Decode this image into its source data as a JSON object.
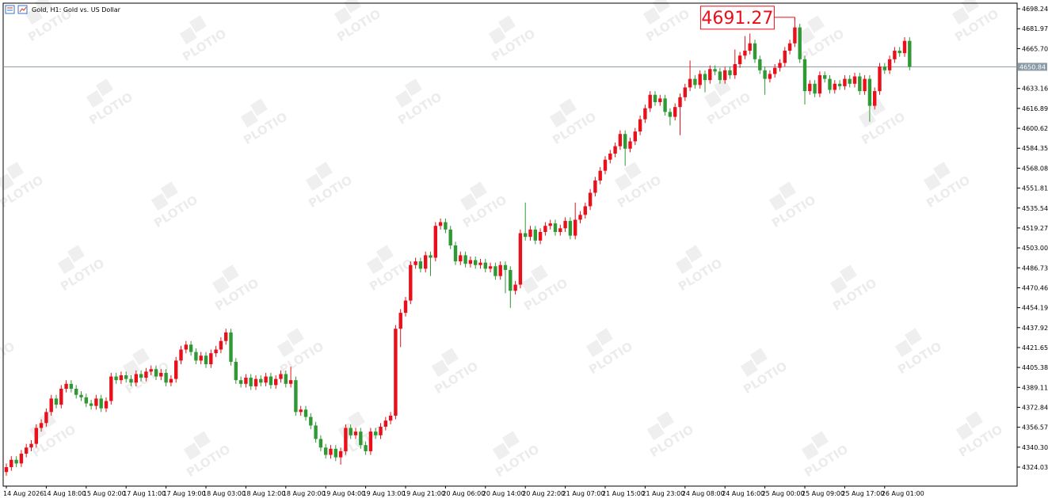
{
  "chart_data": {
    "type": "candlestick",
    "title": "Gold, H1:  Gold vs. US Dollar",
    "watermark": "PLOTIO",
    "up_color": "#e8101a",
    "down_color": "#2f9a34",
    "bid": 4650.84,
    "max_label": 4691.27,
    "ylim": [
      4308.5,
      4702.8
    ],
    "yticks": [
      4324.03,
      {
        "value": 4340.3,
        "label": "4340.30"
      },
      4356.57,
      4372.84,
      4389.11,
      4405.38,
      4421.65,
      4437.92,
      4454.19,
      4470.46,
      4486.73,
      {
        "value": 4503,
        "label": "4503.00"
      },
      4519.27,
      4535.54,
      4551.81,
      4568.08,
      4584.35,
      4600.62,
      4616.89,
      4633.16,
      {
        "value": 4665.7,
        "label": "4665.70"
      },
      4681.97,
      4698.24
    ],
    "categories": [
      "14 Aug 2026",
      null,
      null,
      null,
      null,
      null,
      null,
      null,
      "14 Aug 18:00",
      null,
      null,
      null,
      null,
      null,
      null,
      null,
      "15 Aug 02:00",
      null,
      null,
      null,
      null,
      null,
      null,
      null,
      "17 Aug 11:00",
      null,
      null,
      null,
      null,
      null,
      null,
      null,
      "17 Aug 19:00",
      null,
      null,
      null,
      null,
      null,
      null,
      null,
      "18 Aug 03:00",
      null,
      null,
      null,
      null,
      null,
      null,
      null,
      "18 Aug 12:00",
      null,
      null,
      null,
      null,
      null,
      null,
      null,
      "18 Aug 20:00",
      null,
      null,
      null,
      null,
      null,
      null,
      null,
      "19 Aug 04:00",
      null,
      null,
      null,
      null,
      null,
      null,
      null,
      "19 Aug 13:00",
      null,
      null,
      null,
      null,
      null,
      null,
      null,
      "19 Aug 21:00",
      null,
      null,
      null,
      null,
      null,
      null,
      null,
      "20 Aug 06:00",
      null,
      null,
      null,
      null,
      null,
      null,
      null,
      "20 Aug 14:00",
      null,
      null,
      null,
      null,
      null,
      null,
      null,
      "20 Aug 22:00",
      null,
      null,
      null,
      null,
      null,
      null,
      null,
      "21 Aug 07:00",
      null,
      null,
      null,
      null,
      null,
      null,
      null,
      "21 Aug 15:00",
      null,
      null,
      null,
      null,
      null,
      null,
      null,
      "21 Aug 23:00",
      null,
      null,
      null,
      null,
      null,
      null,
      null,
      "24 Aug 08:00",
      null,
      null,
      null,
      null,
      null,
      null,
      null,
      "24 Aug 16:00",
      null,
      null,
      null,
      null,
      null,
      null,
      null,
      "25 Aug 00:00",
      null,
      null,
      null,
      null,
      null,
      null,
      null,
      "25 Aug 09:00",
      null,
      null,
      null,
      null,
      null,
      null,
      null,
      "25 Aug 17:00",
      null,
      null,
      null,
      null,
      null,
      null,
      null,
      "26 Aug 01:00",
      null,
      null,
      null,
      null,
      null
    ],
    "open": [
      4320,
      4324,
      4330,
      4327,
      4335,
      4340,
      4343,
      4356,
      4360,
      4369,
      4380,
      4375,
      4388,
      4392,
      4388,
      4383,
      4381,
      4376,
      4374,
      4380,
      4372,
      4378,
      4398,
      4395,
      4399,
      4396,
      4393,
      4400,
      4397,
      4402,
      4404,
      4398,
      4401,
      4393,
      4396,
      4411,
      4420,
      4424,
      4418,
      4411,
      4415,
      4408,
      4417,
      4420,
      4427,
      4434,
      4410,
      4395,
      4392,
      4397,
      4390,
      4396,
      4393,
      4398,
      4391,
      4396,
      4400,
      4392,
      4395,
      4369,
      4371,
      4365,
      4358,
      4347,
      4340,
      4334,
      4339,
      4332,
      4337,
      4356,
      4350,
      4353,
      4342,
      4337,
      4353,
      4350,
      4357,
      4362,
      4366,
      4437,
      4450,
      4460,
      4489,
      4492,
      4486,
      4497,
      4495,
      4521,
      4524,
      4518,
      4505,
      4492,
      4497,
      4490,
      4493,
      4489,
      4491,
      4486,
      4488,
      4480,
      4489,
      4485,
      4468,
      4473,
      4515,
      4512,
      4518,
      4509,
      4516,
      4521,
      4523,
      4516,
      4519,
      4525,
      4513,
      4526,
      4530,
      4537,
      4548,
      4558,
      4566,
      4575,
      4580,
      4586,
      4596,
      4584,
      4590,
      4598,
      4608,
      4617,
      4628,
      4622,
      4625,
      4614,
      4610,
      4618,
      4626,
      4634,
      4641,
      4636,
      4645,
      4640,
      4649,
      4647,
      4640,
      4648,
      4644,
      4653,
      4660,
      4664,
      4670,
      4657,
      4648,
      4641,
      4645,
      4650,
      4654,
      4664,
      4670,
      4683,
      4657,
      4631,
      4637,
      4629,
      4644,
      4641,
      4632,
      4637,
      4635,
      4641,
      4637,
      4643,
      4631,
      4641,
      4619,
      4631,
      4651,
      4648,
      4657,
      4664,
      4662,
      4672
    ],
    "high": [
      4327,
      4333,
      4333,
      4338,
      4343,
      4346,
      4359,
      4363,
      4372,
      4383,
      4383,
      4391,
      4395,
      4395,
      4391,
      4386,
      4384,
      4379,
      4383,
      4383,
      4381,
      4401,
      4401,
      4402,
      4402,
      4399,
      4403,
      4403,
      4405,
      4407,
      4407,
      4404,
      4404,
      4399,
      4414,
      4423,
      4427,
      4427,
      4421,
      4418,
      4418,
      4420,
      4423,
      4430,
      4437,
      4437,
      4413,
      4398,
      4400,
      4400,
      4399,
      4399,
      4401,
      4401,
      4399,
      4403,
      4403,
      4406,
      4398,
      4374,
      4374,
      4368,
      4361,
      4350,
      4343,
      4342,
      4342,
      4340,
      4359,
      4359,
      4356,
      4356,
      4345,
      4356,
      4356,
      4360,
      4365,
      4369,
      4440,
      4453,
      4463,
      4492,
      4495,
      4495,
      4500,
      4500,
      4524,
      4527,
      4527,
      4521,
      4508,
      4500,
      4500,
      4496,
      4496,
      4494,
      4494,
      4491,
      4491,
      4492,
      4492,
      4488,
      4476,
      4518,
      4540,
      4521,
      4521,
      4519,
      4524,
      4526,
      4526,
      4522,
      4528,
      4528,
      4540,
      4533,
      4540,
      4551,
      4561,
      4569,
      4578,
      4583,
      4589,
      4599,
      4599,
      4593,
      4601,
      4611,
      4620,
      4631,
      4631,
      4628,
      4628,
      4617,
      4621,
      4629,
      4637,
      4656,
      4644,
      4648,
      4648,
      4652,
      4652,
      4650,
      4651,
      4651,
      4665,
      4663,
      4676,
      4678,
      4673,
      4660,
      4651,
      4648,
      4653,
      4657,
      4667,
      4673,
      4691.27,
      4686,
      4660,
      4640,
      4640,
      4647,
      4647,
      4644,
      4640,
      4640,
      4644,
      4644,
      4646,
      4646,
      4644,
      4644,
      4634,
      4654,
      4654,
      4660,
      4667,
      4667,
      4675,
      4675
    ],
    "low": [
      4317,
      4321,
      4324,
      4324,
      4332,
      4337,
      4340,
      4353,
      4357,
      4366,
      4372,
      4372,
      4385,
      4385,
      4380,
      4378,
      4373,
      4371,
      4371,
      4369,
      4369,
      4375,
      4392,
      4392,
      4393,
      4390,
      4390,
      4394,
      4394,
      4399,
      4395,
      4395,
      4390,
      4390,
      4393,
      4408,
      4417,
      4415,
      4408,
      4408,
      4405,
      4405,
      4414,
      4417,
      4424,
      4407,
      4392,
      4389,
      4389,
      4387,
      4387,
      4390,
      4390,
      4388,
      4388,
      4393,
      4389,
      4389,
      4366,
      4366,
      4362,
      4355,
      4344,
      4337,
      4331,
      4331,
      4329,
      4326,
      4334,
      4347,
      4347,
      4339,
      4334,
      4334,
      4347,
      4347,
      4354,
      4359,
      4363,
      4422,
      4447,
      4457,
      4486,
      4483,
      4483,
      4480,
      4492,
      4518,
      4515,
      4502,
      4489,
      4489,
      4487,
      4487,
      4486,
      4486,
      4483,
      4483,
      4477,
      4477,
      4466,
      4454,
      4465,
      4470,
      4509,
      4509,
      4506,
      4506,
      4513,
      4518,
      4513,
      4513,
      4516,
      4510,
      4510,
      4523,
      4527,
      4534,
      4545,
      4555,
      4563,
      4572,
      4577,
      4583,
      4570,
      4581,
      4587,
      4595,
      4605,
      4614,
      4619,
      4619,
      4611,
      4603,
      4607,
      4595,
      4623,
      4631,
      4633,
      4633,
      4630,
      4637,
      4644,
      4637,
      4637,
      4641,
      4641,
      4650,
      4657,
      4661,
      4654,
      4645,
      4628,
      4638,
      4642,
      4647,
      4651,
      4661,
      4667,
      4654,
      4620,
      4628,
      4626,
      4626,
      4638,
      4629,
      4629,
      4632,
      4632,
      4634,
      4634,
      4628,
      4628,
      4606,
      4616,
      4628,
      4645,
      4645,
      4654,
      4659,
      4659,
      4648
    ],
    "close": [
      4324,
      4330,
      4327,
      4335,
      4340,
      4343,
      4356,
      4360,
      4369,
      4380,
      4375,
      4388,
      4392,
      4388,
      4383,
      4381,
      4376,
      4374,
      4380,
      4372,
      4378,
      4398,
      4395,
      4399,
      4396,
      4393,
      4400,
      4397,
      4402,
      4404,
      4398,
      4401,
      4393,
      4396,
      4411,
      4420,
      4424,
      4418,
      4411,
      4415,
      4408,
      4417,
      4420,
      4427,
      4434,
      4410,
      4395,
      4392,
      4397,
      4390,
      4396,
      4393,
      4398,
      4391,
      4396,
      4400,
      4392,
      4395,
      4369,
      4371,
      4365,
      4358,
      4347,
      4340,
      4334,
      4339,
      4332,
      4337,
      4356,
      4350,
      4353,
      4342,
      4337,
      4353,
      4350,
      4357,
      4362,
      4366,
      4437,
      4450,
      4460,
      4489,
      4492,
      4486,
      4497,
      4495,
      4521,
      4524,
      4518,
      4505,
      4492,
      4497,
      4490,
      4493,
      4489,
      4491,
      4486,
      4488,
      4480,
      4489,
      4485,
      4468,
      4473,
      4515,
      4512,
      4518,
      4509,
      4516,
      4521,
      4523,
      4516,
      4519,
      4525,
      4513,
      4526,
      4530,
      4537,
      4548,
      4558,
      4566,
      4575,
      4580,
      4586,
      4596,
      4584,
      4590,
      4598,
      4608,
      4617,
      4628,
      4622,
      4625,
      4614,
      4610,
      4618,
      4626,
      4634,
      4641,
      4636,
      4645,
      4640,
      4649,
      4647,
      4640,
      4648,
      4644,
      4653,
      4660,
      4664,
      4670,
      4657,
      4648,
      4641,
      4645,
      4650,
      4654,
      4664,
      4670,
      4683,
      4657,
      4631,
      4637,
      4629,
      4644,
      4641,
      4632,
      4637,
      4635,
      4641,
      4637,
      4643,
      4631,
      4641,
      4619,
      4631,
      4651,
      4648,
      4657,
      4664,
      4662,
      4672,
      4650.84
    ]
  }
}
